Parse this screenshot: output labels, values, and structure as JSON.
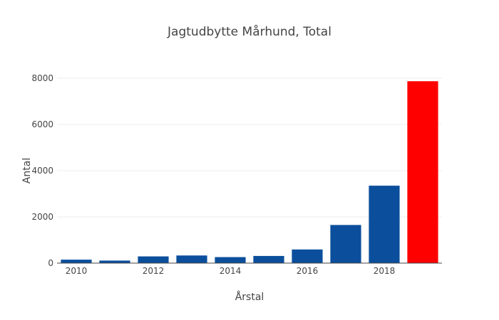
{
  "chart_data": {
    "type": "bar",
    "title": "Jagtudbytte Mårhund, Total",
    "xlabel": "Årstal",
    "ylabel": "Antal",
    "x": [
      2010,
      2011,
      2012,
      2013,
      2014,
      2015,
      2016,
      2017,
      2018,
      2019
    ],
    "values": [
      150,
      110,
      290,
      330,
      260,
      310,
      590,
      1650,
      3350,
      7870
    ],
    "bar_colors": [
      "#0b4f9c",
      "#0b4f9c",
      "#0b4f9c",
      "#0b4f9c",
      "#0b4f9c",
      "#0b4f9c",
      "#0b4f9c",
      "#0b4f9c",
      "#0b4f9c",
      "#ff0000"
    ],
    "xticks": [
      "2010",
      "2012",
      "2014",
      "2016",
      "2018"
    ],
    "xtick_values": [
      2010,
      2012,
      2014,
      2016,
      2018
    ],
    "yticks": [
      "0",
      "2000",
      "4000",
      "6000",
      "8000"
    ],
    "ytick_values": [
      0,
      2000,
      4000,
      6000,
      8000
    ],
    "ylim": [
      0,
      8000
    ],
    "xlim": [
      2009.5,
      2019.5
    ],
    "grid": true,
    "legend": false
  },
  "colors": {
    "bar": "#0b4f9c",
    "highlight": "#ff0000",
    "grid": "#eeeeee",
    "axis_line": "#444444",
    "text": "#444444"
  }
}
